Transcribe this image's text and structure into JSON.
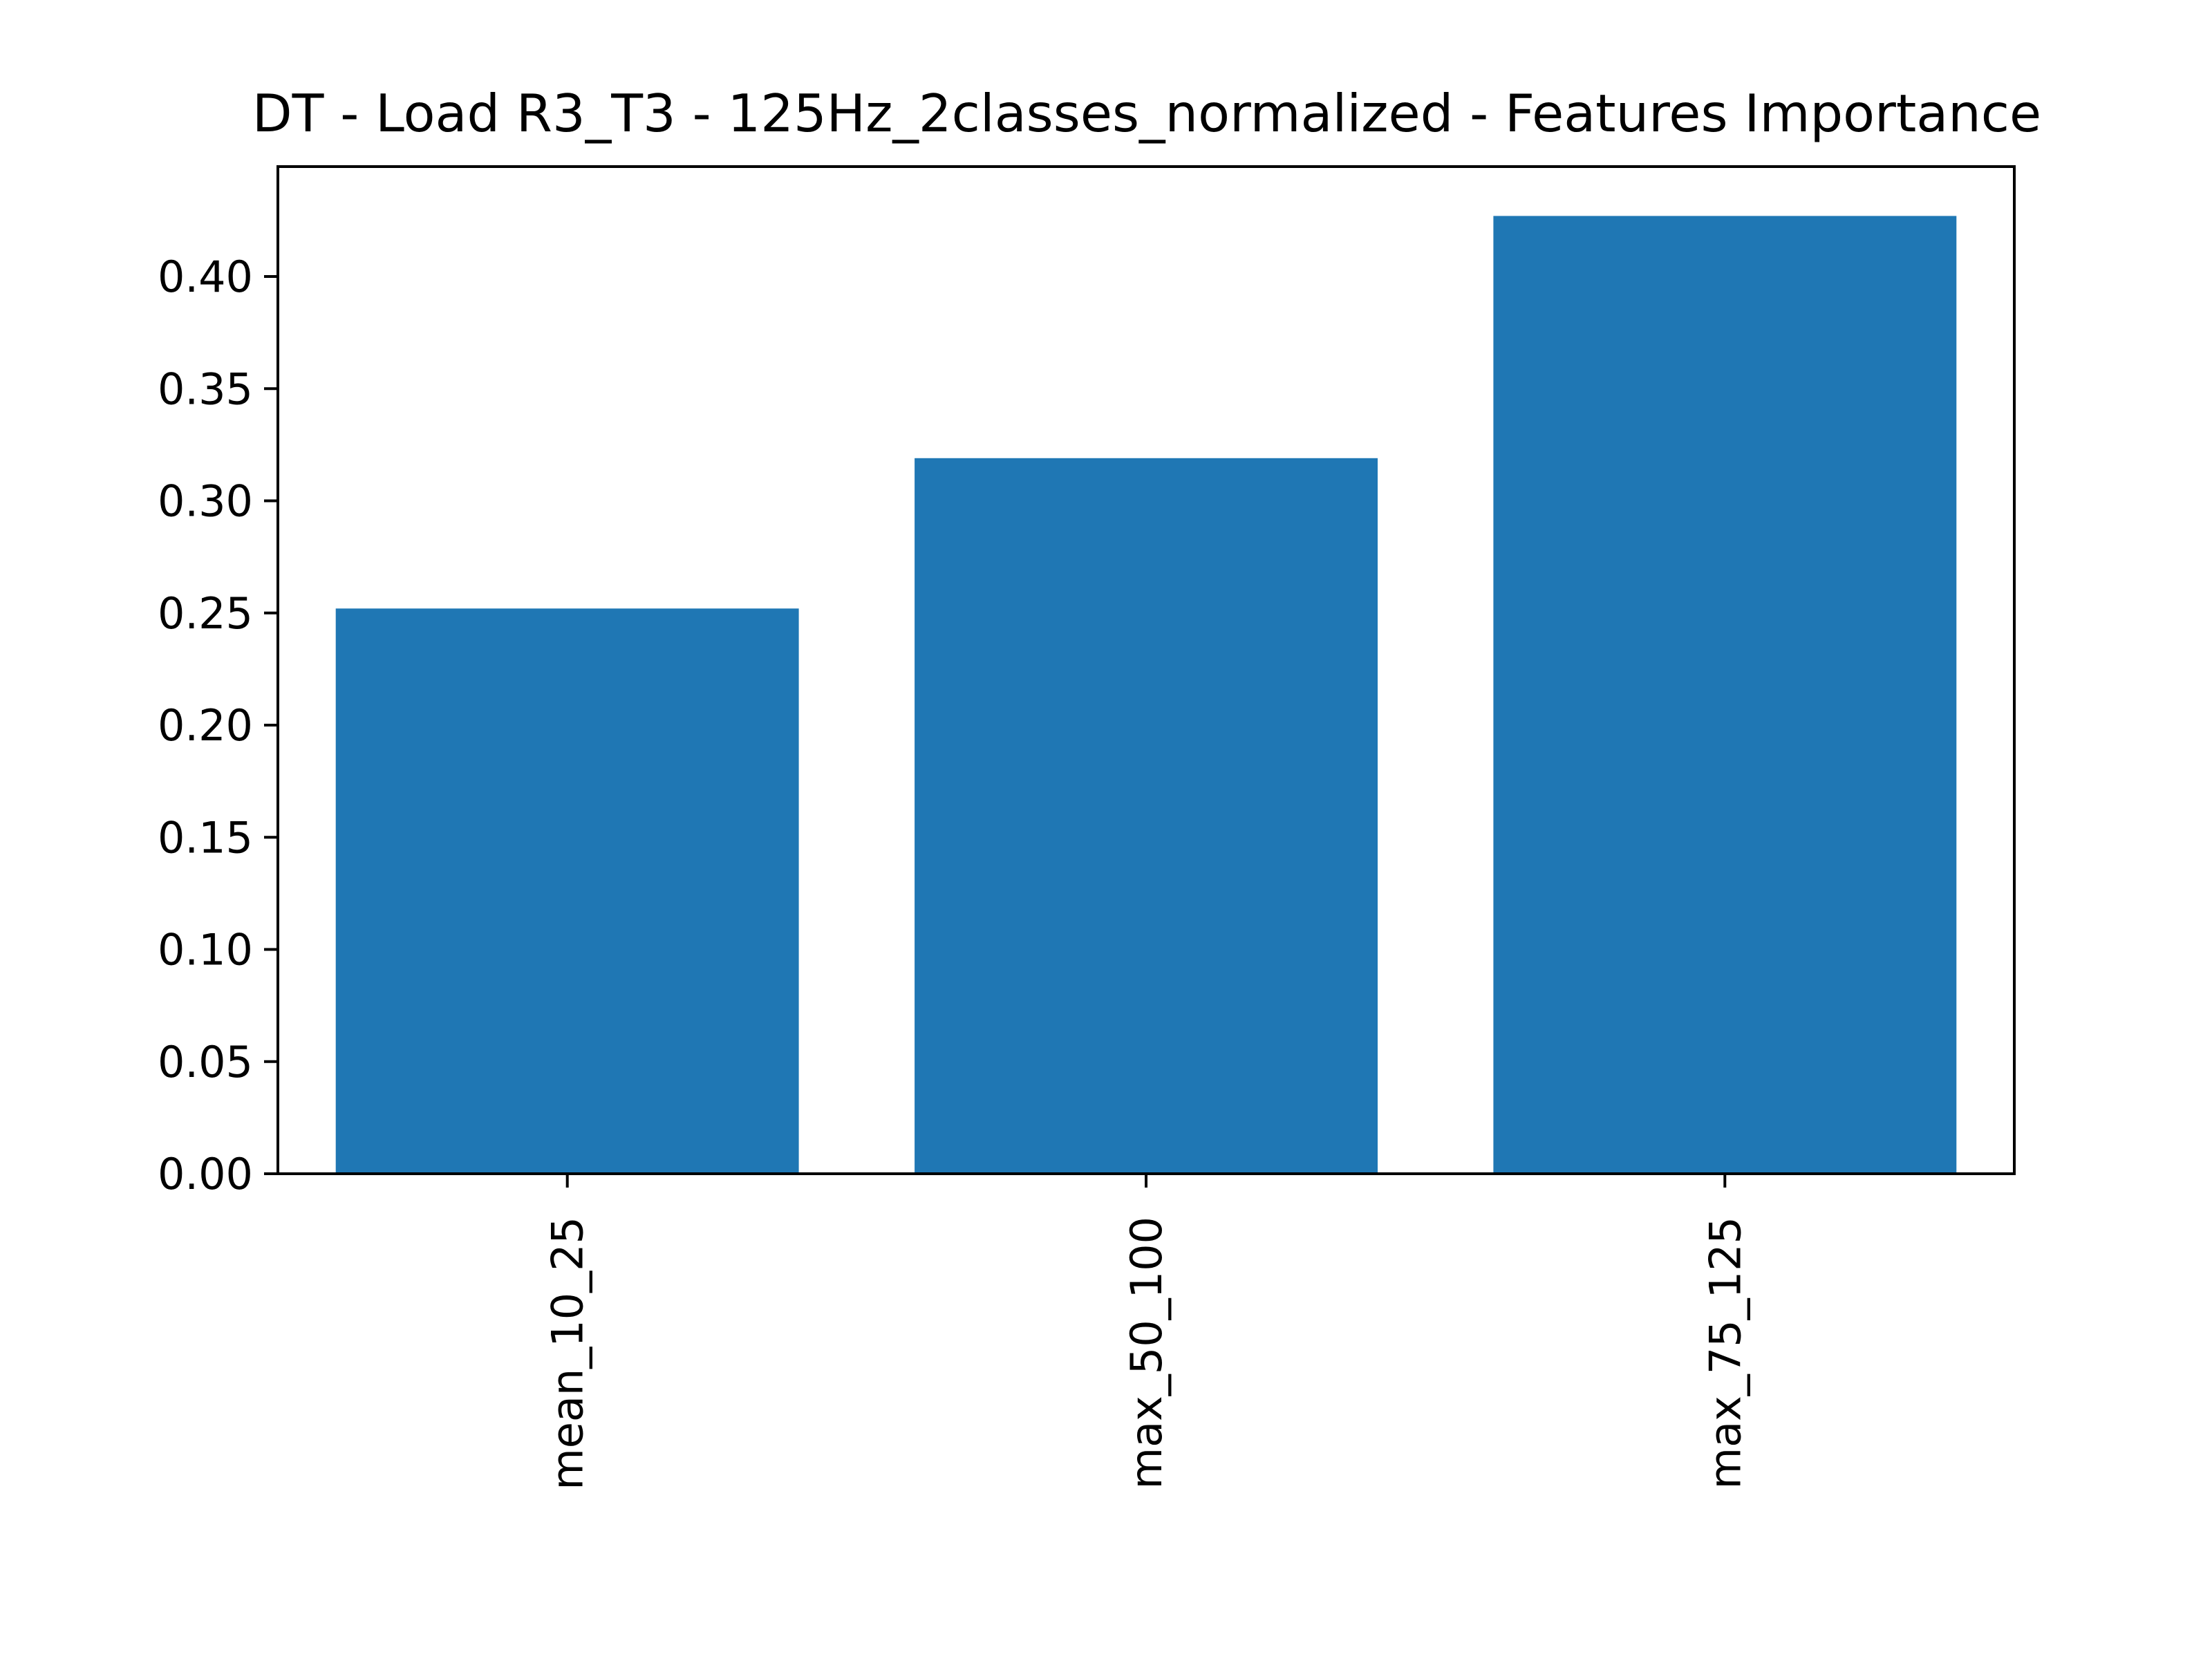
{
  "chart_data": {
    "type": "bar",
    "title": "DT - Load R3_T3 - 125Hz_2classes_normalized - Features Importance",
    "xlabel": "",
    "ylabel": "",
    "categories": [
      "mean_10_25",
      "max_50_100",
      "max_75_125"
    ],
    "values": [
      0.252,
      0.319,
      0.427
    ],
    "ylim": [
      0,
      0.449
    ],
    "yticks": [
      "0.00",
      "0.05",
      "0.10",
      "0.15",
      "0.20",
      "0.25",
      "0.30",
      "0.35",
      "0.40"
    ],
    "xtick_rotation": "vertical",
    "grid": false,
    "legend": "none",
    "bar_color": "#1f77b4"
  }
}
